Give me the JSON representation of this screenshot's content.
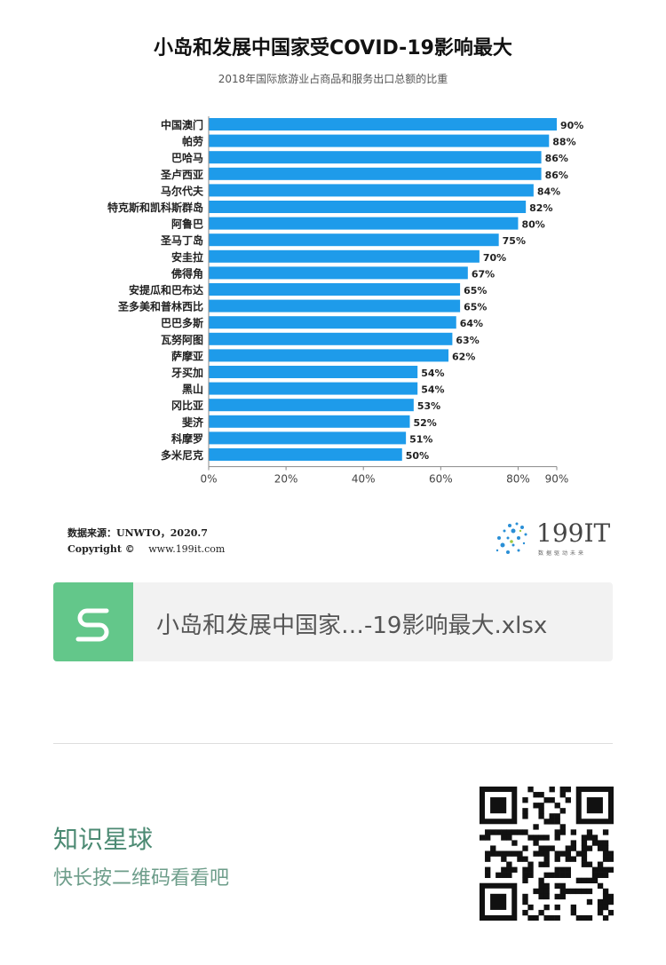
{
  "header": {
    "title": "小岛和发展中国家受COVID-19影响最大",
    "subtitle": "2018年国际旅游业占商品和服务出口总额的比重"
  },
  "chart_data": {
    "type": "bar",
    "orientation": "horizontal",
    "categories": [
      "中国澳门",
      "帕劳",
      "巴哈马",
      "圣卢西亚",
      "马尔代夫",
      "特克斯和凯科斯群岛",
      "阿鲁巴",
      "圣马丁岛",
      "安圭拉",
      "佛得角",
      "安提瓜和巴布达",
      "圣多美和普林西比",
      "巴巴多斯",
      "瓦努阿图",
      "萨摩亚",
      "牙买加",
      "黑山",
      "冈比亚",
      "斐济",
      "科摩罗",
      "多米尼克"
    ],
    "values": [
      90,
      88,
      86,
      86,
      84,
      82,
      80,
      75,
      70,
      67,
      65,
      65,
      64,
      63,
      62,
      54,
      54,
      53,
      52,
      51,
      50
    ],
    "value_labels": [
      "90%",
      "88%",
      "86%",
      "86%",
      "84%",
      "82%",
      "80%",
      "75%",
      "70%",
      "67%",
      "65%",
      "65%",
      "64%",
      "63%",
      "62%",
      "54%",
      "54%",
      "53%",
      "52%",
      "51%",
      "50%"
    ],
    "xticks": [
      "0%",
      "20%",
      "40%",
      "60%",
      "80%",
      "90%"
    ],
    "xtick_values": [
      0,
      20,
      40,
      60,
      80,
      90
    ],
    "xlim": [
      0,
      90
    ],
    "bar_color": "#1e9bea",
    "title": "小岛和发展中国家受COVID-19影响最大",
    "subtitle": "2018年国际旅游业占商品和服务出口总额的比重",
    "xlabel": "",
    "ylabel": "",
    "grid": false
  },
  "footer": {
    "source": "数据来源：UNWTO，2020.7",
    "copyright_label": "Copyright ©",
    "website": "www.199it.com",
    "logo_text": "199IT",
    "logo_slogan": "数据驱动未来"
  },
  "attachment": {
    "icon": "spreadsheet-s-icon",
    "icon_color": "#63c78a",
    "file_name": "小岛和发展中国家…-19影响最大.xlsx"
  },
  "promo": {
    "title": "知识星球",
    "subtitle": "快长按二维码看看吧"
  },
  "colors": {
    "accent_green": "#4c8a73"
  }
}
